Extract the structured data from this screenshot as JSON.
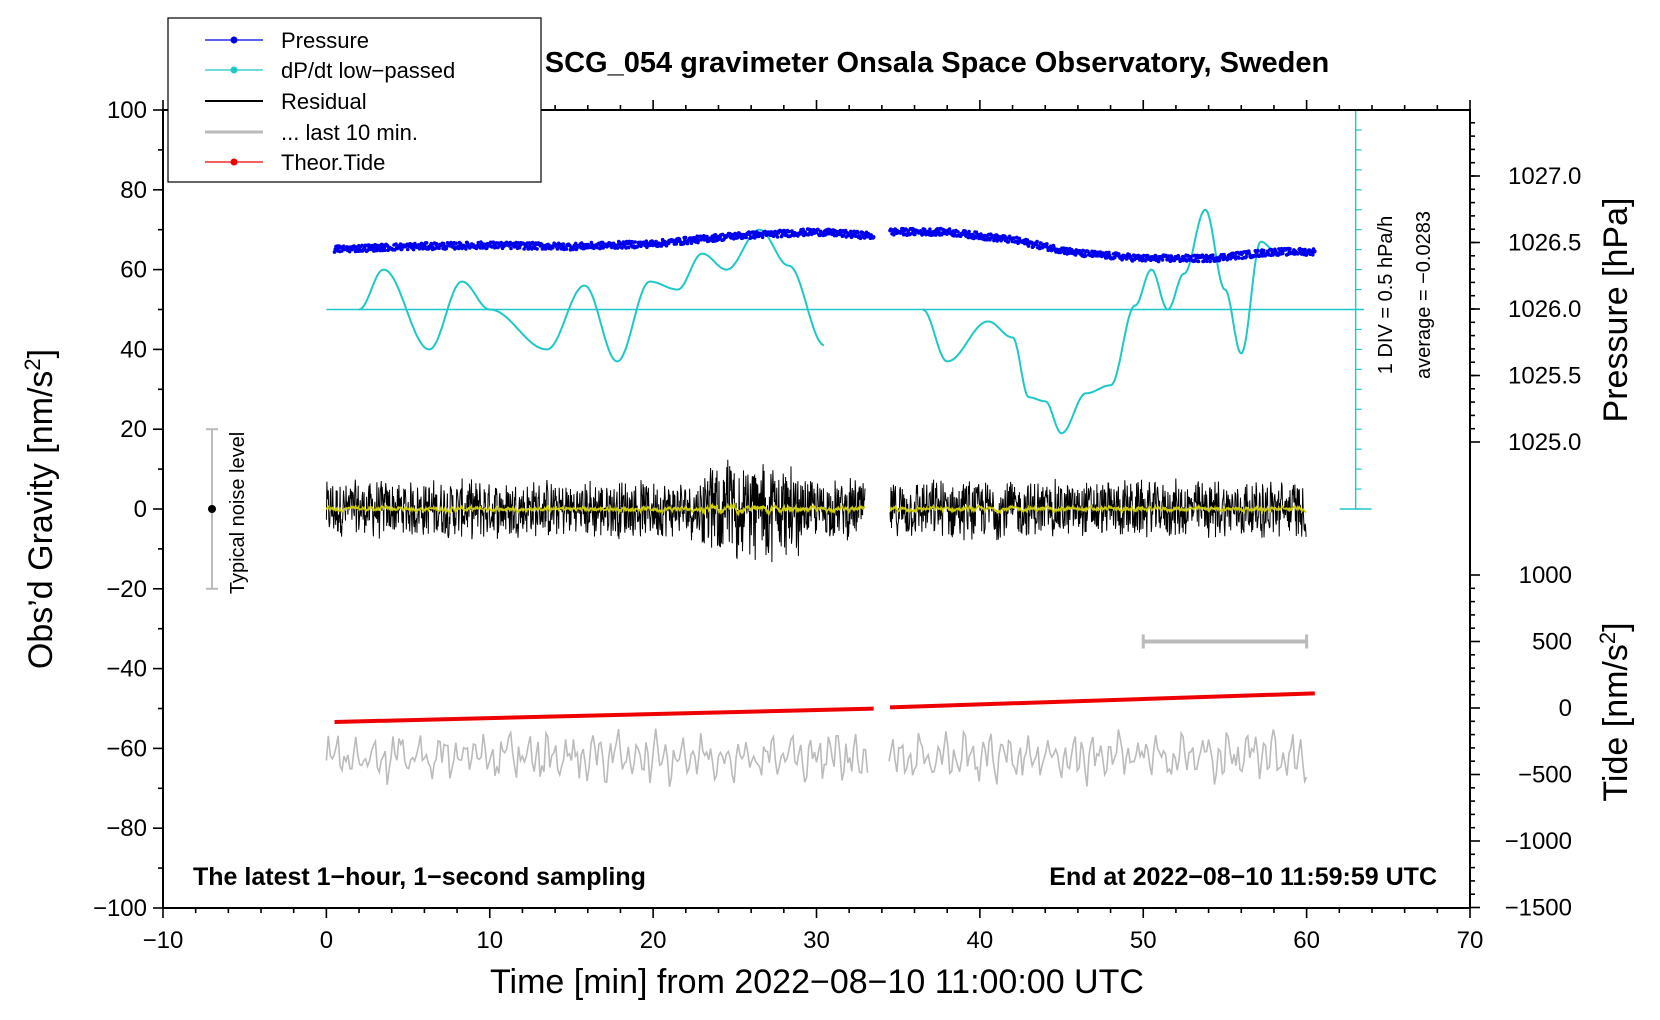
{
  "chart_data": {
    "type": "line",
    "title": "SCG_054 gravimeter Onsala Space Observatory, Sweden",
    "xlabel": "Time [min] from 2022−08−10 11:00:00 UTC",
    "ylabel_left": "Obs'd Gravity [nm/s2]",
    "ylabel_pressure": "Pressure [hPa]",
    "ylabel_tide": "Tide [nm/s2]",
    "xlim": [
      -10,
      70
    ],
    "ylim": [
      -100,
      100
    ],
    "x_ticks": [
      "−10",
      "0",
      "10",
      "20",
      "30",
      "40",
      "50",
      "60",
      "70"
    ],
    "y_ticks": [
      "100",
      "80",
      "60",
      "40",
      "20",
      "0",
      "−20",
      "−40",
      "−60",
      "−80",
      "−100"
    ],
    "pressure_ticks": [
      "1027.0",
      "1026.5",
      "1026.0",
      "1025.5",
      "1025.0"
    ],
    "tide_ticks": [
      "1000",
      "500",
      "0",
      "−500",
      "−1000",
      "−1500"
    ],
    "legend": [
      {
        "label": "Pressure",
        "color": "#0000ee"
      },
      {
        "label": "dP/dt low−passed",
        "color": "#1ec8c8"
      },
      {
        "label": "Residual",
        "color": "#000000"
      },
      {
        "label": "... last 10 min.",
        "color": "#bbbbbb"
      },
      {
        "label": "Theor.Tide",
        "color": "#ee0000"
      }
    ],
    "pressure_hPa": {
      "x_minutes": [
        0.5,
        5,
        10,
        15,
        20,
        25,
        30,
        33.5,
        34.5,
        38,
        42,
        46,
        50,
        54,
        58,
        60.5
      ],
      "values": [
        1026.45,
        1026.47,
        1026.48,
        1026.47,
        1026.49,
        1026.55,
        1026.58,
        1026.55,
        1026.58,
        1026.58,
        1026.52,
        1026.42,
        1026.38,
        1026.38,
        1026.43,
        1026.43
      ]
    },
    "dpdt_nms2": {
      "x_minutes": [
        2,
        3.5,
        6.3,
        8.3,
        10,
        13.5,
        15.8,
        17.8,
        19.8,
        21.5,
        23,
        24.5,
        26.5,
        28.3,
        30.5,
        36.5,
        38,
        40.5,
        42,
        43,
        44,
        45,
        46.5,
        48,
        49.5,
        50.5,
        51.5,
        52.5,
        53.8,
        55,
        56,
        57.2,
        58
      ],
      "values": [
        50,
        60,
        40,
        57,
        50,
        40,
        56,
        37,
        57,
        55,
        64,
        60,
        70,
        61,
        41,
        50,
        37,
        47,
        43,
        28,
        27,
        19,
        29,
        31,
        51,
        60,
        50,
        59,
        75,
        55,
        39,
        67,
        65
      ]
    },
    "dpdt_reference": {
      "zero_level": 50,
      "scale": "1 DIV = 0.5 hPa/h",
      "average": "average = −0.0283"
    },
    "residual_envelope": {
      "x_minutes": [
        0,
        33,
        34.5,
        60
      ],
      "amplitude": [
        8,
        8,
        8,
        8
      ],
      "peak_amplitude": 12
    },
    "theoretical_tide_nms2": {
      "x_minutes": [
        0.5,
        33.5,
        34.5,
        60.5
      ],
      "values": [
        -105,
        -5,
        5,
        110
      ]
    },
    "last_10_min_marker": {
      "from": 50,
      "to": 60
    },
    "noise_bar": {
      "label": "Typical noise level",
      "x": -7,
      "range": [
        -20,
        20
      ]
    },
    "notes": {
      "left": "The latest 1−hour, 1−second sampling",
      "right": "End at 2022−08−10 11:59:59 UTC"
    }
  }
}
